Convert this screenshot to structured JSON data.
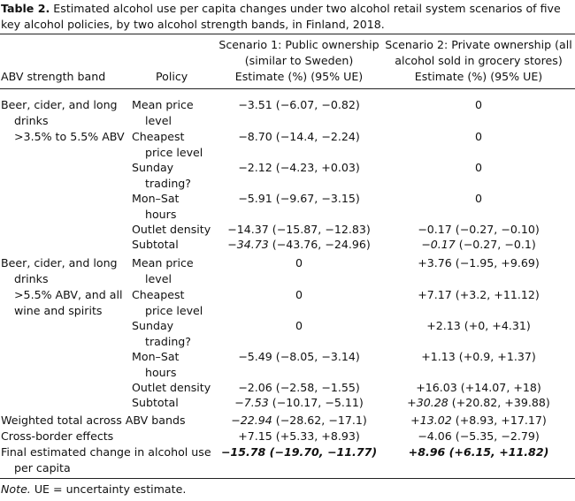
{
  "caption": {
    "label": "Table 2.",
    "text": "Estimated alcohol use per capita changes under two alcohol retail system scenarios of five key alcohol policies, by two alcohol strength bands, in Finland, 2018."
  },
  "headers": {
    "abv": "ABV strength band",
    "policy": "Policy",
    "s1_l1": "Scenario 1: Public ownership",
    "s1_l2": "(similar to Sweden)",
    "s1_l3": "Estimate (%) (95% UE)",
    "s2_l1": "Scenario 2: Private ownership (all",
    "s2_l2": "alcohol sold in grocery stores)",
    "s2_l3": "Estimate (%) (95% UE)"
  },
  "band1": {
    "l1": "Beer, cider, and long",
    "l2": "drinks",
    "l3": ">3.5% to 5.5% ABV",
    "rows": [
      {
        "p1": "Mean price",
        "p2": "level",
        "s1": "−3.51 (−6.07, −0.82)",
        "s2": "0"
      },
      {
        "p1": "Cheapest",
        "p2": "price level",
        "s1": "−8.70 (−14.4, −2.24)",
        "s2": "0"
      },
      {
        "p1": "Sunday",
        "p2": "trading?",
        "s1": "−2.12 (−4.23, +0.03)",
        "s2": "0"
      },
      {
        "p1": "Mon–Sat",
        "p2": "hours",
        "s1": "−5.91 (−9.67, −3.15)",
        "s2": "0"
      },
      {
        "p1": "Outlet density",
        "p2": "",
        "s1": "−14.37 (−15.87, −12.83)",
        "s2": "−0.17 (−0.27, −0.10)"
      }
    ],
    "subtotal": {
      "label": "Subtotal",
      "s1_a": "−34.73",
      "s1_b": " (−43.76, −24.96)",
      "s2_a": "−0.17",
      "s2_b": " (−0.27, −0.1)"
    }
  },
  "band2": {
    "l1": "Beer, cider, and long",
    "l2": "drinks",
    "l3": ">5.5% ABV, and all",
    "l4": "wine and spirits",
    "rows": [
      {
        "p1": "Mean price",
        "p2": "level",
        "s1": "0",
        "s2": "+3.76 (−1.95, +9.69)"
      },
      {
        "p1": "Cheapest",
        "p2": "price level",
        "s1": "0",
        "s2": "+7.17 (+3.2, +11.12)"
      },
      {
        "p1": "Sunday",
        "p2": "trading?",
        "s1": "0",
        "s2": "+2.13 (+0, +4.31)"
      },
      {
        "p1": "Mon–Sat",
        "p2": "hours",
        "s1": "−5.49 (−8.05, −3.14)",
        "s2": "+1.13 (+0.9, +1.37)"
      },
      {
        "p1": "Outlet density",
        "p2": "",
        "s1": "−2.06 (−2.58, −1.55)",
        "s2": "+16.03 (+14.07, +18)"
      }
    ],
    "subtotal": {
      "label": "Subtotal",
      "s1_a": "−7.53",
      "s1_b": " (−10.17, −5.11)",
      "s2_a": "+30.28",
      "s2_b": " (+20.82, +39.88)"
    }
  },
  "weighted": {
    "label": "Weighted total across ABV bands",
    "s1_a": "−22.94",
    "s1_b": " (−28.62, −17.1)",
    "s2_a": "+13.02",
    "s2_b": " (+8.93, +17.17)"
  },
  "crossborder": {
    "label": "Cross-border effects",
    "s1": "+7.15 (+5.33, +8.93)",
    "s2": "−4.06 (−5.35, −2.79)"
  },
  "final": {
    "l1": "Final estimated change in alcohol use",
    "l2": "per capita",
    "s1": "−15.78 (−19.70, −11.77)",
    "s2": "+8.96 (+6.15, +11.82)"
  },
  "note": {
    "label": "Note.",
    "text": " UE = uncertainty estimate."
  }
}
